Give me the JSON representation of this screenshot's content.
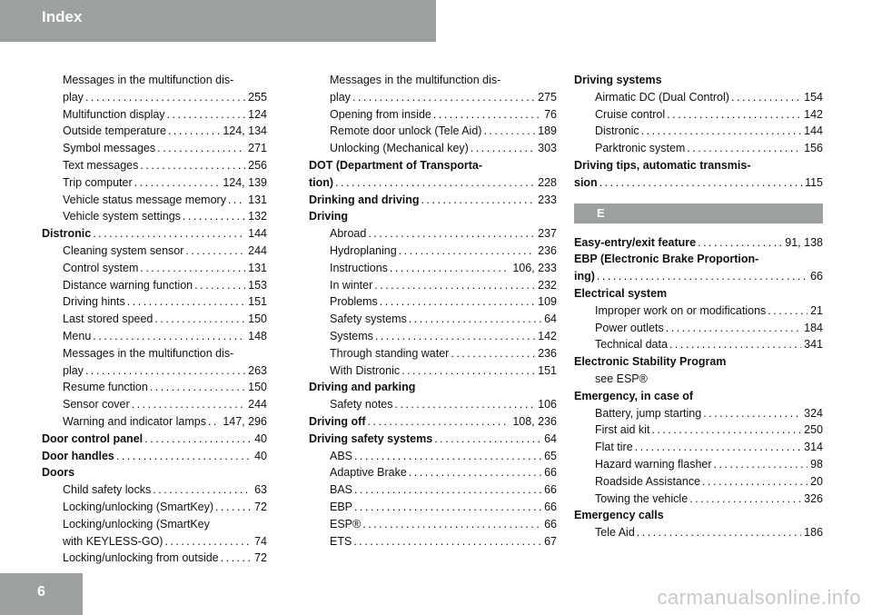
{
  "header": {
    "title": "Index"
  },
  "footer": {
    "page_number": "6",
    "watermark": "carmanualsonline.info"
  },
  "colors": {
    "bar": "#9aa1a0",
    "text": "#111111"
  },
  "columns": [
    [
      {
        "t": "Messages in the multifunction dis-",
        "sub": true
      },
      {
        "t": "play",
        "p": "255",
        "sub": true
      },
      {
        "t": "Multifunction display",
        "p": "124",
        "sub": true
      },
      {
        "t": "Outside temperature",
        "p": "124, 134",
        "sub": true
      },
      {
        "t": "Symbol messages",
        "p": "271",
        "sub": true
      },
      {
        "t": "Text messages",
        "p": "256",
        "sub": true
      },
      {
        "t": "Trip computer",
        "p": "124, 139",
        "sub": true
      },
      {
        "t": "Vehicle status message memory",
        "p": "131",
        "sub": true
      },
      {
        "t": "Vehicle system settings",
        "p": "132",
        "sub": true
      },
      {
        "t": "Distronic",
        "p": "144",
        "bold": true
      },
      {
        "t": "Cleaning system sensor",
        "p": "244",
        "sub": true
      },
      {
        "t": "Control system",
        "p": "131",
        "sub": true
      },
      {
        "t": "Distance warning function",
        "p": "153",
        "sub": true
      },
      {
        "t": "Driving hints",
        "p": "151",
        "sub": true
      },
      {
        "t": "Last stored speed",
        "p": "150",
        "sub": true
      },
      {
        "t": "Menu",
        "p": "148",
        "sub": true
      },
      {
        "t": "Messages in the multifunction dis-",
        "sub": true
      },
      {
        "t": "play",
        "p": "263",
        "sub": true
      },
      {
        "t": "Resume function",
        "p": "150",
        "sub": true
      },
      {
        "t": "Sensor cover",
        "p": "244",
        "sub": true
      },
      {
        "t": "Warning and indicator lamps",
        "p": "147, 296",
        "sub": true
      },
      {
        "t": "Door control panel",
        "p": "40",
        "bold": true
      },
      {
        "t": "Door handles",
        "p": "40",
        "bold": true
      },
      {
        "t": "Doors",
        "bold": true
      },
      {
        "t": "Child safety locks",
        "p": "63",
        "sub": true
      },
      {
        "t": "Locking/unlocking (SmartKey)",
        "p": "72",
        "sub": true
      },
      {
        "t": "Locking/unlocking (SmartKey",
        "sub": true
      },
      {
        "t": "with KEYLESS-GO)",
        "p": "74",
        "sub": true
      },
      {
        "t": "Locking/unlocking from outside",
        "p": "72",
        "sub": true
      }
    ],
    [
      {
        "t": "Messages in the multifunction dis-",
        "sub": true
      },
      {
        "t": "play",
        "p": "275",
        "sub": true
      },
      {
        "t": "Opening from inside",
        "p": "76",
        "sub": true
      },
      {
        "t": "Remote door unlock (Tele Aid)",
        "p": "189",
        "sub": true
      },
      {
        "t": "Unlocking (Mechanical key)",
        "p": "303",
        "sub": true
      },
      {
        "t": "DOT (Department of Transporta-",
        "bold": true
      },
      {
        "t": "tion)",
        "p": "228",
        "bold": true
      },
      {
        "t": "Drinking and driving",
        "p": "233",
        "bold": true
      },
      {
        "t": "Driving",
        "bold": true
      },
      {
        "t": "Abroad",
        "p": "237",
        "sub": true
      },
      {
        "t": "Hydroplaning",
        "p": "236",
        "sub": true
      },
      {
        "t": "Instructions",
        "p": "106, 233",
        "sub": true
      },
      {
        "t": "In winter",
        "p": "232",
        "sub": true
      },
      {
        "t": "Problems",
        "p": "109",
        "sub": true
      },
      {
        "t": "Safety systems",
        "p": "64",
        "sub": true
      },
      {
        "t": "Systems",
        "p": "142",
        "sub": true
      },
      {
        "t": "Through standing water",
        "p": "236",
        "sub": true
      },
      {
        "t": "With Distronic",
        "p": "151",
        "sub": true
      },
      {
        "t": "Driving and parking",
        "bold": true
      },
      {
        "t": "Safety notes",
        "p": "106",
        "sub": true
      },
      {
        "t": "Driving off",
        "p": "108, 236",
        "bold": true
      },
      {
        "t": "Driving safety systems",
        "p": "64",
        "bold": true
      },
      {
        "t": "ABS",
        "p": "65",
        "sub": true
      },
      {
        "t": "Adaptive Brake",
        "p": "66",
        "sub": true
      },
      {
        "t": "BAS",
        "p": "66",
        "sub": true
      },
      {
        "t": "EBP",
        "p": "66",
        "sub": true
      },
      {
        "t": "ESP®",
        "p": "66",
        "sub": true
      },
      {
        "t": "ETS",
        "p": "67",
        "sub": true
      }
    ],
    [
      {
        "t": "Driving systems",
        "bold": true
      },
      {
        "t": "Airmatic DC (Dual Control)",
        "p": "154",
        "sub": true
      },
      {
        "t": "Cruise control",
        "p": "142",
        "sub": true
      },
      {
        "t": "Distronic",
        "p": "144",
        "sub": true
      },
      {
        "t": "Parktronic system",
        "p": "156",
        "sub": true
      },
      {
        "t": "Driving tips, automatic transmis-",
        "bold": true
      },
      {
        "t": "sion",
        "p": "115",
        "bold": true
      },
      {
        "section": "E"
      },
      {
        "t": "Easy-entry/exit feature",
        "p": "91, 138",
        "bold": true
      },
      {
        "t": "EBP (Electronic Brake Proportion-",
        "bold": true
      },
      {
        "t": "ing)",
        "p": "66",
        "bold": true
      },
      {
        "t": "Electrical system",
        "bold": true
      },
      {
        "t": "Improper work on or modifications",
        "p": "21",
        "sub": true
      },
      {
        "t": "Power outlets",
        "p": "184",
        "sub": true
      },
      {
        "t": "Technical data",
        "p": "341",
        "sub": true
      },
      {
        "t": "Electronic Stability Program",
        "bold": true
      },
      {
        "t": "see ESP®",
        "sub": true
      },
      {
        "t": "Emergency, in case of",
        "bold": true
      },
      {
        "t": "Battery, jump starting",
        "p": "324",
        "sub": true
      },
      {
        "t": "First aid kit",
        "p": "250",
        "sub": true
      },
      {
        "t": "Flat tire",
        "p": "314",
        "sub": true
      },
      {
        "t": "Hazard warning flasher",
        "p": "98",
        "sub": true
      },
      {
        "t": "Roadside Assistance",
        "p": "20",
        "sub": true
      },
      {
        "t": "Towing the vehicle",
        "p": "326",
        "sub": true
      },
      {
        "t": "Emergency calls",
        "bold": true
      },
      {
        "t": "Tele Aid",
        "p": "186",
        "sub": true
      }
    ]
  ]
}
